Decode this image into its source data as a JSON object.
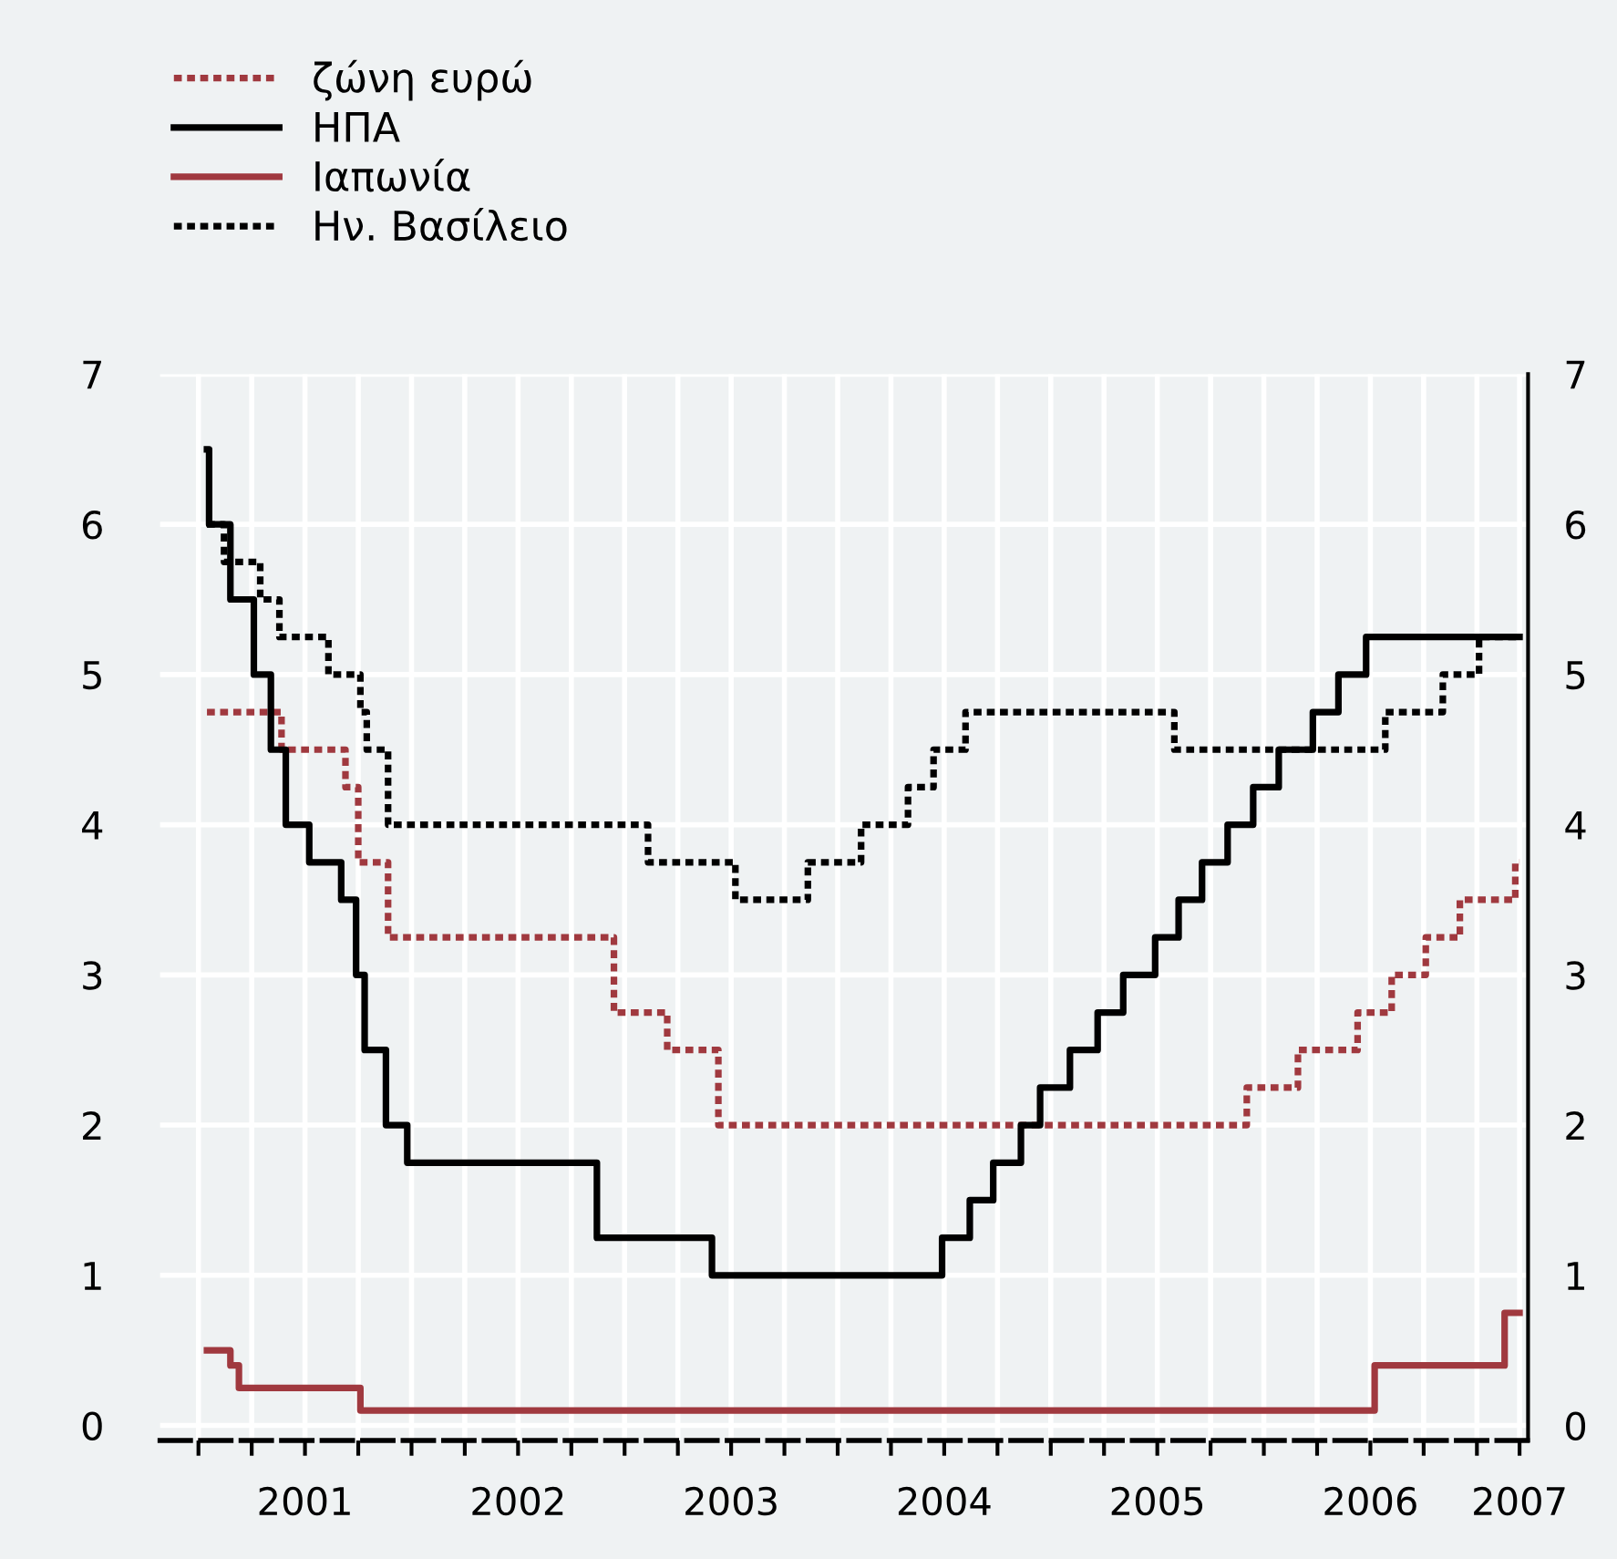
{
  "chart_data": {
    "type": "step",
    "series": [
      {
        "name": "ζώνη ευρώ",
        "color": "#a0393f",
        "line_style": "dotted",
        "x": [
          2001.04,
          2001.39,
          2001.69,
          2001.75,
          2001.89,
          2002.95,
          2003.2,
          2003.44,
          2005.92,
          2006.16,
          2006.44,
          2006.6,
          2006.76,
          2006.92,
          2007.18,
          2007.2
        ],
        "values": [
          4.75,
          4.5,
          4.25,
          3.75,
          3.25,
          2.75,
          2.5,
          2.0,
          2.25,
          2.5,
          2.75,
          3.0,
          3.25,
          3.5,
          3.75,
          3.75
        ]
      },
      {
        "name": "ΗΠΑ",
        "color": "#000000",
        "line_style": "solid",
        "x": [
          2001.04,
          2001.05,
          2001.15,
          2001.26,
          2001.34,
          2001.41,
          2001.52,
          2001.67,
          2001.74,
          2001.78,
          2001.88,
          2001.98,
          2002.87,
          2003.41,
          2004.49,
          2004.62,
          2004.73,
          2004.86,
          2004.95,
          2005.09,
          2005.22,
          2005.34,
          2005.49,
          2005.6,
          2005.71,
          2005.83,
          2005.95,
          2006.07,
          2006.23,
          2006.35,
          2006.48,
          2007.2
        ],
        "values": [
          6.5,
          6.0,
          5.5,
          5.0,
          4.5,
          4.0,
          3.75,
          3.5,
          3.0,
          2.5,
          2.0,
          1.75,
          1.25,
          1.0,
          1.25,
          1.5,
          1.75,
          2.0,
          2.25,
          2.5,
          2.75,
          3.0,
          3.25,
          3.5,
          3.75,
          4.0,
          4.25,
          4.5,
          4.75,
          5.0,
          5.25,
          5.25
        ]
      },
      {
        "name": "Ιαπωνία",
        "color": "#a0393f",
        "line_style": "solid",
        "x": [
          2001.04,
          2001.15,
          2001.19,
          2001.76,
          2006.52,
          2007.13,
          2007.2
        ],
        "values": [
          0.5,
          0.4,
          0.25,
          0.1,
          0.4,
          0.75,
          0.75
        ]
      },
      {
        "name": "Ην. Βασίλειο",
        "color": "#000000",
        "line_style": "dotted",
        "x": [
          2001.04,
          2001.12,
          2001.29,
          2001.38,
          2001.61,
          2001.76,
          2001.79,
          2001.89,
          2003.11,
          2003.52,
          2003.86,
          2004.11,
          2004.33,
          2004.45,
          2004.6,
          2005.58,
          2006.57,
          2006.84,
          2007.01,
          2007.2
        ],
        "values": [
          6.0,
          5.75,
          5.5,
          5.25,
          5.0,
          4.75,
          4.5,
          4.0,
          3.75,
          3.5,
          3.75,
          4.0,
          4.25,
          4.5,
          4.75,
          4.5,
          4.75,
          5.0,
          5.25,
          5.25
        ]
      }
    ],
    "xlim": [
      2000.82,
      2007.24
    ],
    "xticks": [
      {
        "value": 2001.0,
        "label": null
      },
      {
        "value": 2001.25,
        "label": null
      },
      {
        "value": 2001.5,
        "label": "2001"
      },
      {
        "value": 2001.75,
        "label": null
      },
      {
        "value": 2002.0,
        "label": null
      },
      {
        "value": 2002.25,
        "label": null
      },
      {
        "value": 2002.5,
        "label": "2002"
      },
      {
        "value": 2002.75,
        "label": null
      },
      {
        "value": 2003.0,
        "label": null
      },
      {
        "value": 2003.25,
        "label": null
      },
      {
        "value": 2003.5,
        "label": "2003"
      },
      {
        "value": 2003.75,
        "label": null
      },
      {
        "value": 2004.0,
        "label": null
      },
      {
        "value": 2004.25,
        "label": null
      },
      {
        "value": 2004.5,
        "label": "2004"
      },
      {
        "value": 2004.75,
        "label": null
      },
      {
        "value": 2005.0,
        "label": null
      },
      {
        "value": 2005.25,
        "label": null
      },
      {
        "value": 2005.5,
        "label": "2005"
      },
      {
        "value": 2005.75,
        "label": null
      },
      {
        "value": 2006.0,
        "label": null
      },
      {
        "value": 2006.25,
        "label": null
      },
      {
        "value": 2006.5,
        "label": "2006"
      },
      {
        "value": 2006.75,
        "label": null
      },
      {
        "value": 2007.0,
        "label": null
      },
      {
        "value": 2007.2,
        "label": "2007"
      }
    ],
    "ylim": [
      -0.1,
      7
    ],
    "yticks": [
      0,
      1,
      2,
      3,
      4,
      5,
      6,
      7
    ],
    "y2lim": [
      -0.1,
      7
    ],
    "y2ticks": [
      0,
      1,
      2,
      3,
      4,
      5,
      6,
      7
    ],
    "grid": true,
    "legend": "top left"
  }
}
